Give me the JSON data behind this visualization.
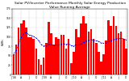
{
  "title": "Solar PV/Inverter Performance Monthly Solar Energy Production Value Running Average",
  "ylabel": "kWh",
  "bar_color": "#ff0000",
  "avg_color": "#0000ff",
  "background": "#ffffff",
  "grid_color": "#b0b0b0",
  "values": [
    55,
    80,
    125,
    135,
    145,
    125,
    100,
    100,
    95,
    70,
    40,
    25,
    45,
    85,
    140,
    110,
    80,
    100,
    95,
    105,
    105,
    70,
    95,
    30,
    60,
    120,
    100,
    135,
    155,
    135,
    115,
    120,
    95,
    85,
    60,
    35,
    55,
    90,
    145,
    130,
    155,
    130,
    110,
    115,
    95,
    70
  ],
  "running_avg": [
    55,
    65,
    83,
    99,
    108,
    112,
    106,
    104,
    101,
    97,
    90,
    80,
    76,
    76,
    80,
    80,
    78,
    79,
    79,
    80,
    82,
    80,
    82,
    77,
    76,
    79,
    79,
    82,
    86,
    89,
    91,
    93,
    91,
    90,
    88,
    85,
    83,
    84,
    88,
    90,
    93,
    95,
    95,
    96,
    95,
    92
  ],
  "ylim": [
    0,
    175
  ],
  "yticks": [
    0,
    25,
    50,
    75,
    100,
    125,
    150,
    175
  ],
  "ytick_labels": [
    "0",
    "25",
    "50",
    "75",
    "100",
    "125",
    "150",
    "175"
  ],
  "xtick_positions": [
    0,
    3,
    6,
    9,
    12,
    15,
    18,
    21,
    24,
    27,
    30,
    33,
    36,
    39,
    42,
    45
  ],
  "xtick_labels": [
    "J '08",
    "A",
    "J",
    "O",
    "J '09",
    "A",
    "J",
    "O",
    "J '10",
    "A",
    "J",
    "O",
    "J '11",
    "A",
    "J",
    "O"
  ],
  "title_fontsize": 3.2,
  "tick_fontsize": 2.2,
  "ylabel_fontsize": 2.8,
  "legend_fontsize": 2.5
}
